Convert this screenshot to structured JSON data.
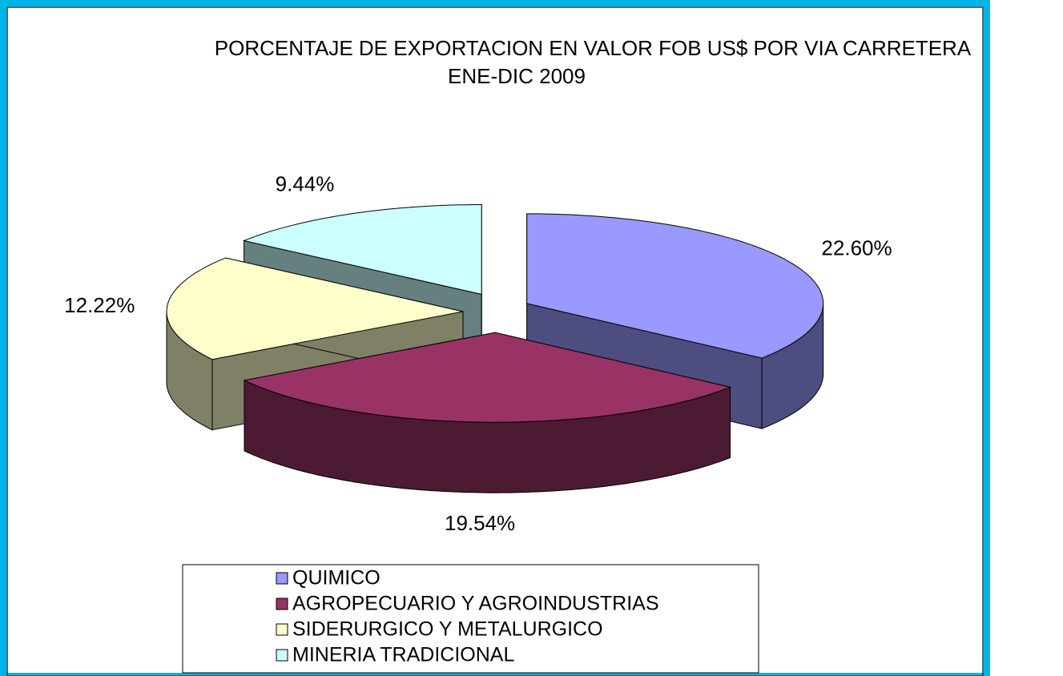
{
  "chart_data": {
    "type": "pie3d",
    "title": "PORCENTAJE DE EXPORTACION EN VALOR FOB US$ POR VIA CARRETERA",
    "subtitle": "ENE-DIC 2009",
    "categories": [
      "QUIMICO",
      "AGROPECUARIO Y AGROINDUSTRIAS",
      "SIDERURGICO Y METALURGICO",
      "MINERIA TRADICIONAL"
    ],
    "values": [
      22.6,
      19.54,
      12.22,
      9.44
    ],
    "value_labels": [
      "22.60%",
      "19.54%",
      "12.22%",
      "9.44%"
    ],
    "colors": [
      "#9999ff",
      "#993366",
      "#ffffcc",
      "#ccffff"
    ],
    "legend": "bottom"
  }
}
